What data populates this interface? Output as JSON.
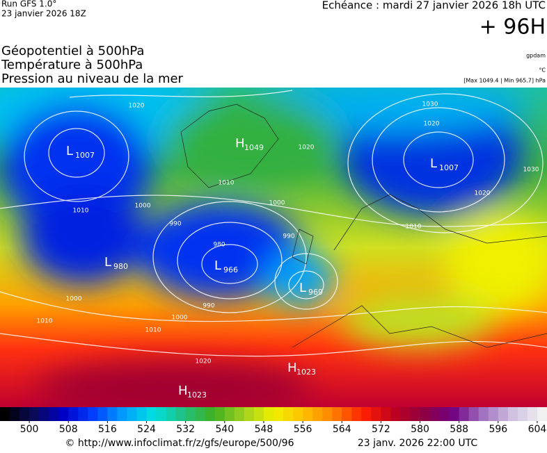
{
  "header": {
    "run": "Run GFS 1.0°",
    "date": "23 janvier 2026 18Z",
    "forecast": "Echéance : mardi 27 janvier 2026 18h UTC",
    "lead": "+ 96H"
  },
  "titles": [
    "Géopotentiel à 500hPa",
    "Température à 500hPa",
    "Pression au niveau de la mer"
  ],
  "units": {
    "geopotential": "gpdam",
    "temperature": "°C",
    "pressure": "[Max 1049.4 | Min 965.7] hPa"
  },
  "centers": [
    {
      "kind": "L",
      "value": "1007"
    },
    {
      "kind": "H",
      "value": "1049"
    },
    {
      "kind": "L",
      "value": "980"
    },
    {
      "kind": "L",
      "value": "966"
    },
    {
      "kind": "L",
      "value": "969"
    },
    {
      "kind": "L",
      "value": "1007"
    },
    {
      "kind": "H",
      "value": "1023"
    },
    {
      "kind": "H",
      "value": "1023"
    }
  ],
  "isobar_labels": [
    "1020",
    "1010",
    "1000",
    "990",
    "980",
    "990",
    "1000",
    "1010",
    "1020",
    "1030",
    "1020",
    "1030",
    "1020",
    "1010",
    "1020",
    "1010",
    "1000",
    "990",
    "1000",
    "1010"
  ],
  "colorbar": {
    "range": [
      494,
      606
    ],
    "ticks": [
      500,
      508,
      516,
      524,
      532,
      540,
      548,
      556,
      564,
      572,
      580,
      588,
      596,
      604
    ],
    "colors": [
      "#000000",
      "#0a0a5a",
      "#0000c8",
      "#0040ff",
      "#00a0ff",
      "#00e0e0",
      "#20c080",
      "#40b020",
      "#a0d020",
      "#f0f000",
      "#ffc000",
      "#ff8000",
      "#ff2000",
      "#c00020",
      "#900040",
      "#700080",
      "#a070c0",
      "#d0c0e0",
      "#f0f0f0"
    ]
  },
  "footer": {
    "url": "© http://www.infoclimat.fr/z/gfs/europe/500/96",
    "issued": "23 janv. 2026 22:00 UTC"
  }
}
